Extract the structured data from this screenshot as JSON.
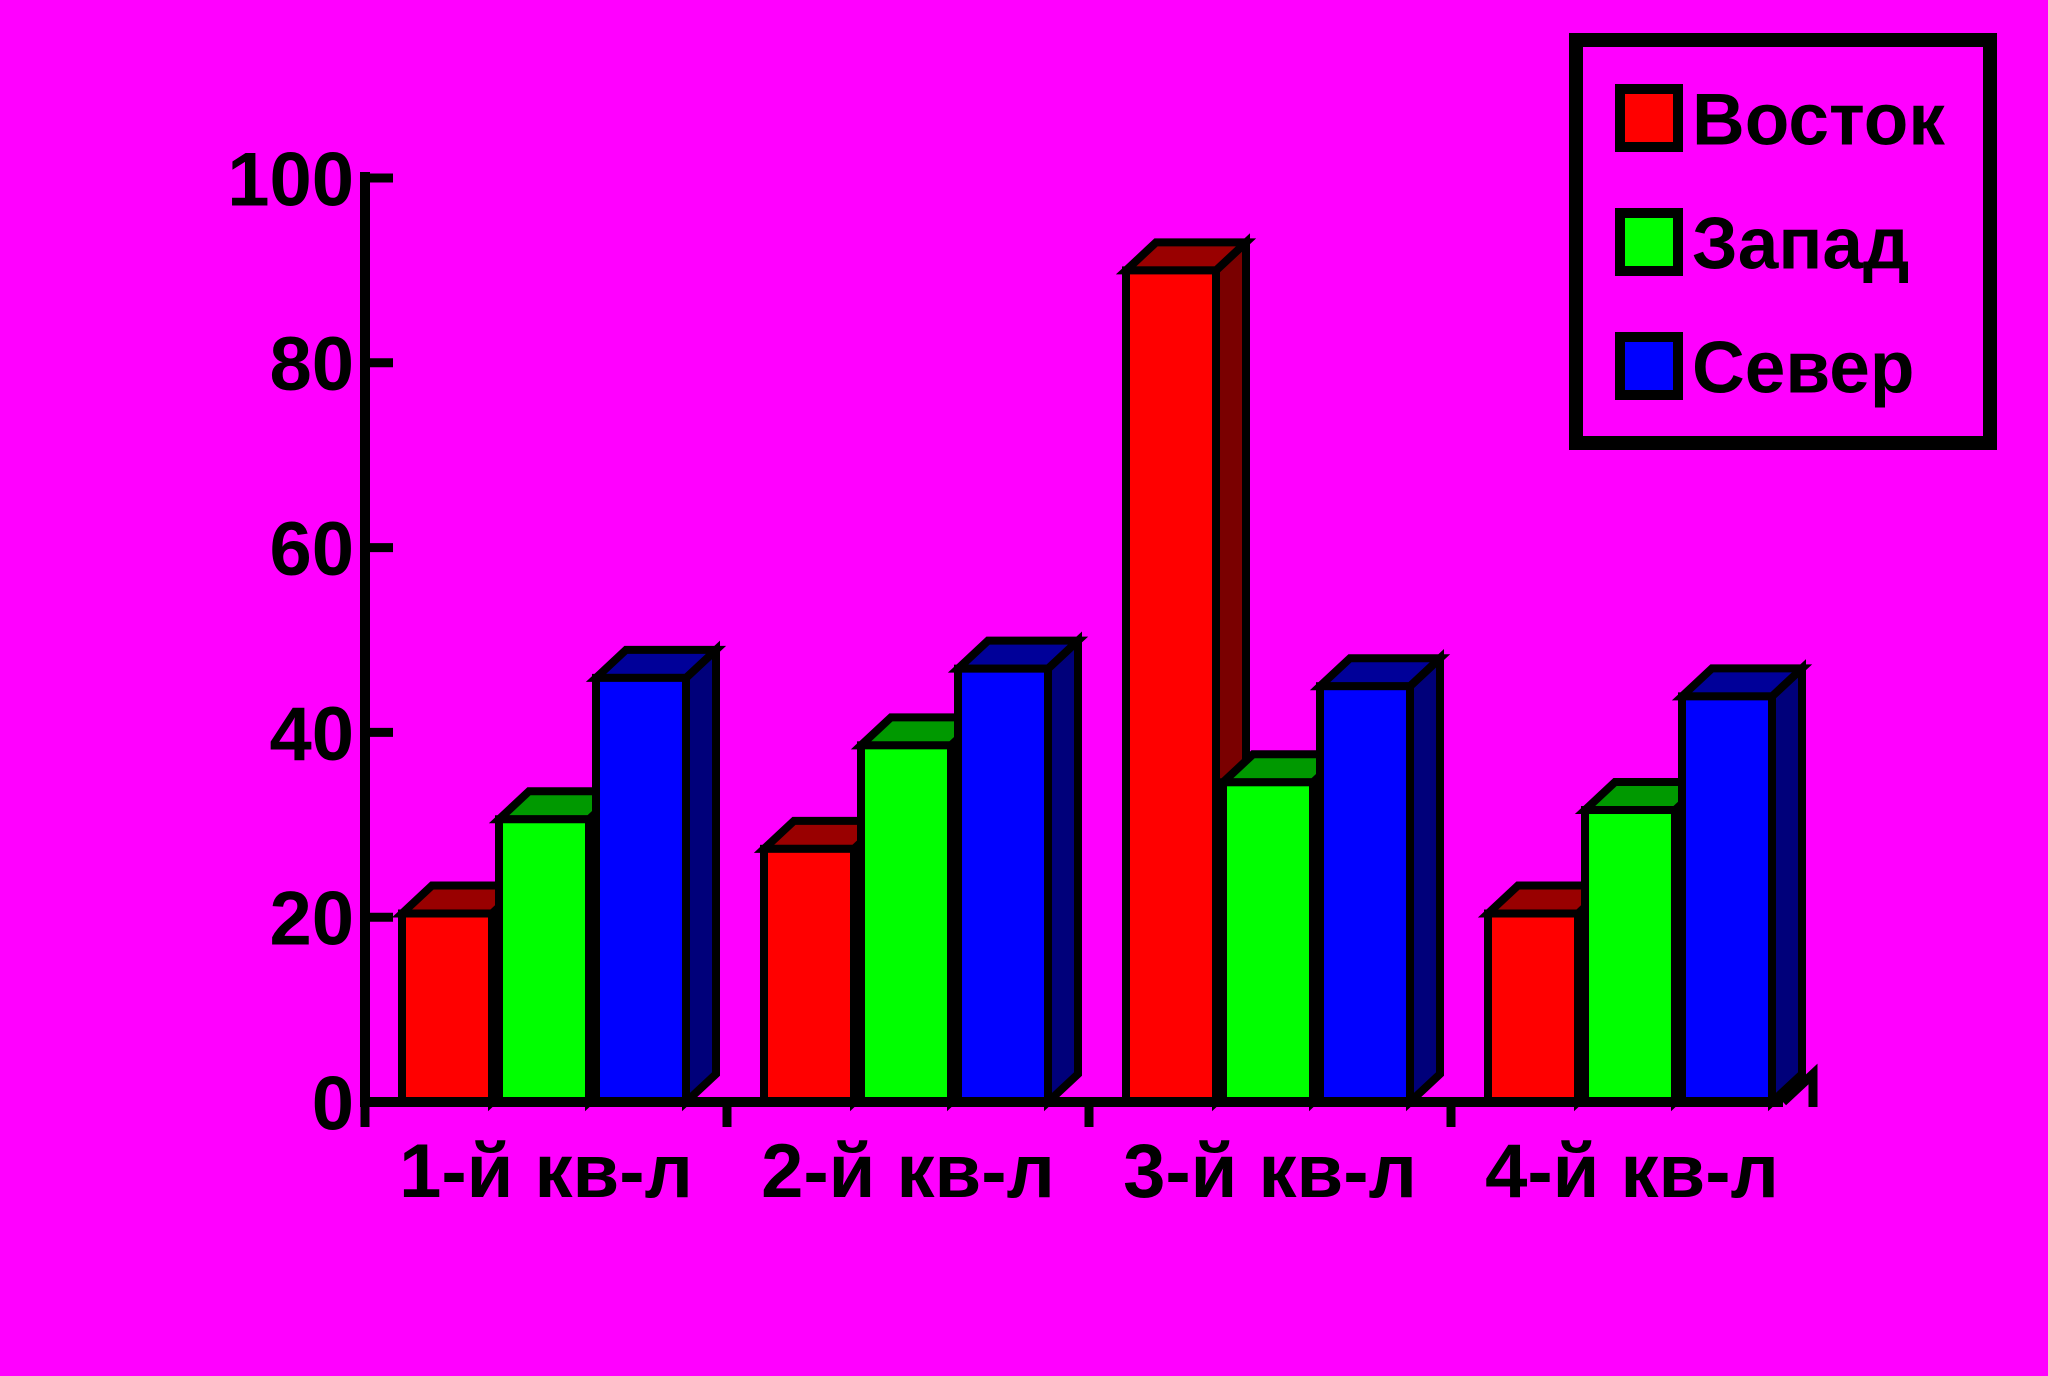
{
  "page": {
    "background_color": "#FF00FF"
  },
  "chart_data": {
    "type": "bar",
    "variant": "3d-column",
    "title": "",
    "xlabel": "",
    "ylabel": "",
    "categories": [
      "1-й кв-л",
      "2-й кв-л",
      "3-й кв-л",
      "4-й кв-л"
    ],
    "series": [
      {
        "key": "east",
        "name": "Восток",
        "color": "#FF0000",
        "values": [
          20.4,
          27.4,
          90,
          20.4
        ]
      },
      {
        "key": "west",
        "name": "Запад",
        "color": "#00FF00",
        "values": [
          30.6,
          38.6,
          34.6,
          31.6
        ]
      },
      {
        "key": "north",
        "name": "Север",
        "color": "#0000FF",
        "values": [
          45.9,
          46.9,
          45,
          43.9
        ]
      }
    ],
    "ylim": [
      0,
      100
    ],
    "y_ticks": [
      0,
      20,
      40,
      60,
      80,
      100
    ],
    "y_tick_labels": [
      "0",
      "20",
      "40",
      "60",
      "80",
      "100"
    ],
    "grid": false,
    "legend_position": "top-right",
    "background_color": "#FF00FF",
    "axis_color": "#000000",
    "text_color": "#000000",
    "outline_color": "#000000"
  }
}
